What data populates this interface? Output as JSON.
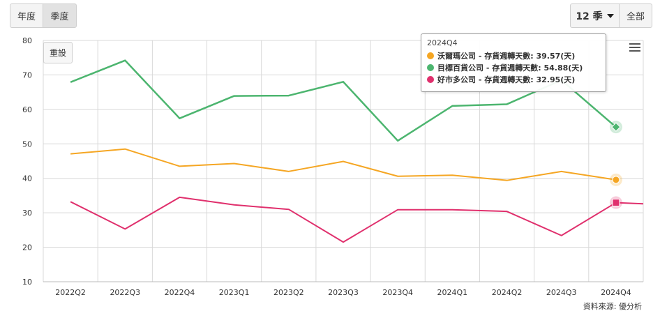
{
  "controls": {
    "year_label": "年度",
    "quarter_label": "季度",
    "count_label": "12 季",
    "all_label": "全部",
    "reset_label": "重設"
  },
  "tooltip": {
    "title": "2024Q4",
    "rows": [
      {
        "text": "沃爾瑪公司 - 存貨週轉天數: 39.57(天)",
        "color": "#f5a623"
      },
      {
        "text": "目標百貨公司 - 存貨週轉天數: 54.88(天)",
        "color": "#4cb56f"
      },
      {
        "text": "好市多公司 - 存貨週轉天數: 32.95(天)",
        "color": "#e0306d"
      }
    ]
  },
  "source": "資料來源: 優分析",
  "chart_data": {
    "type": "line",
    "categories": [
      "2022Q2",
      "2022Q3",
      "2022Q4",
      "2023Q1",
      "2023Q2",
      "2023Q3",
      "2023Q4",
      "2024Q1",
      "2024Q2",
      "2024Q3",
      "2024Q4"
    ],
    "ylim": [
      10,
      80
    ],
    "yticks": [
      10,
      20,
      30,
      40,
      50,
      60,
      70,
      80
    ],
    "grid": true,
    "series": [
      {
        "name": "沃爾瑪公司",
        "color": "#f5a623",
        "marker": "circle",
        "values": [
          47.1,
          48.5,
          43.5,
          44.3,
          42.0,
          44.9,
          40.6,
          40.9,
          39.4,
          42.0,
          39.57
        ]
      },
      {
        "name": "目標百貨公司",
        "color": "#4cb56f",
        "marker": "diamond",
        "values": [
          67.9,
          74.2,
          57.4,
          63.9,
          64.0,
          68.0,
          50.9,
          61.0,
          61.5,
          68.5,
          54.88
        ]
      },
      {
        "name": "好市多公司",
        "color": "#e0306d",
        "marker": "square",
        "values": [
          33.2,
          25.3,
          34.5,
          32.3,
          31.0,
          21.5,
          30.9,
          30.9,
          30.4,
          23.4,
          32.95
        ],
        "trailing": 32.6
      }
    ]
  }
}
